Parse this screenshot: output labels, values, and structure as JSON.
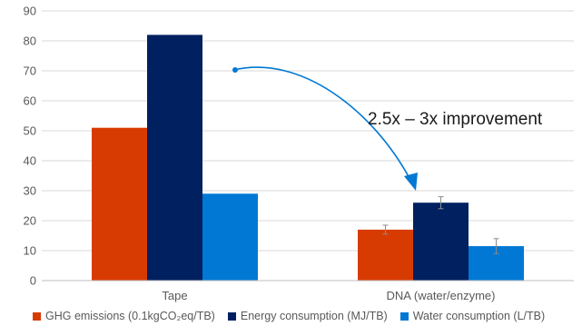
{
  "chart_data": {
    "type": "bar",
    "categories": [
      "Tape",
      "DNA (water/enzyme)"
    ],
    "series": [
      {
        "name": "GHG emissions (0.1kgCO₂eq/TB)",
        "values": [
          51,
          17
        ],
        "error": [
          null,
          1.5
        ],
        "color": "#d83b01"
      },
      {
        "name": "Energy consumption (MJ/TB)",
        "values": [
          82,
          26
        ],
        "error": [
          null,
          2
        ],
        "color": "#002060"
      },
      {
        "name": "Water consumption (L/TB)",
        "values": [
          29,
          11.5
        ],
        "error": [
          null,
          2.5
        ],
        "color": "#0078d4"
      }
    ],
    "ylim": [
      0,
      90
    ],
    "yticks": [
      0,
      10,
      20,
      30,
      40,
      50,
      60,
      70,
      80,
      90
    ],
    "grid": true,
    "legend": "bottom",
    "annotation": {
      "text": "2.5x – 3x improvement",
      "color": "#0078d4"
    }
  }
}
